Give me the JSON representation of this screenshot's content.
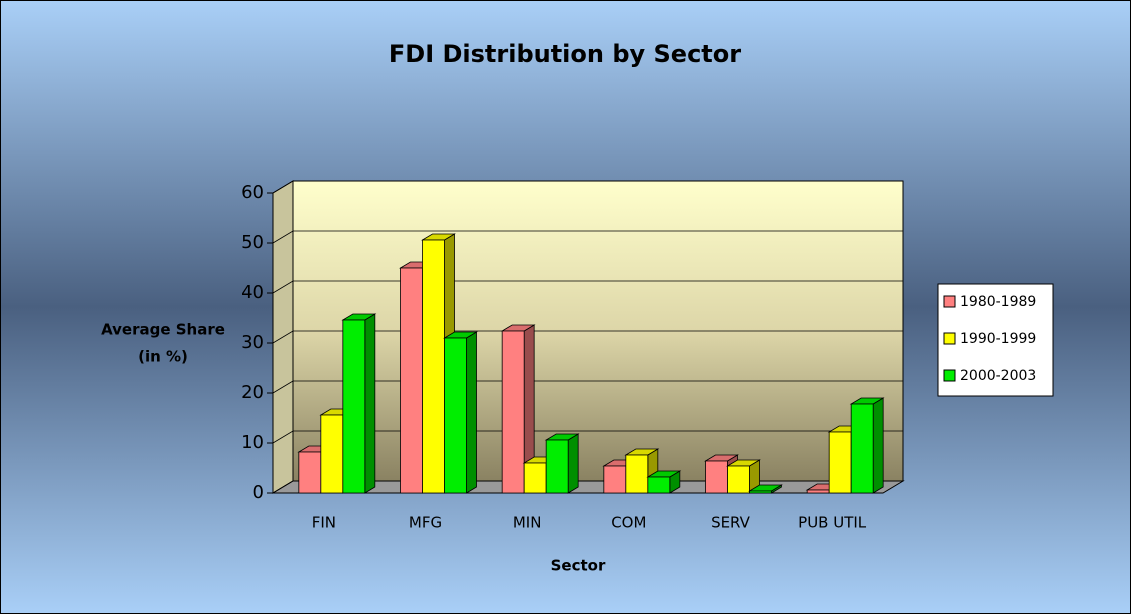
{
  "chart_data": {
    "type": "bar3d",
    "title": "FDI Distribution by Sector",
    "ylabel": [
      "Average Share",
      "(in %)"
    ],
    "xlabel": "Sector",
    "categories": [
      "FIN",
      "MFG",
      "MIN",
      "COM",
      "SERV",
      "PUB UTIL"
    ],
    "series": [
      {
        "name": "1980-1989",
        "color": "#ff8080",
        "values": [
          8.2,
          45,
          32.4,
          5.4,
          6.4,
          0.6
        ]
      },
      {
        "name": "1990-1999",
        "color": "#ffff00",
        "values": [
          15.6,
          50.6,
          6,
          7.6,
          5.4,
          12.2
        ]
      },
      {
        "name": "2000-2003",
        "color": "#00ee00",
        "values": [
          34.6,
          31,
          10.6,
          3.2,
          0.4,
          17.8
        ]
      }
    ],
    "ylim": [
      0,
      60
    ],
    "yticks": [
      0,
      10,
      20,
      30,
      40,
      50,
      60
    ],
    "grid": true,
    "legend": "right"
  }
}
